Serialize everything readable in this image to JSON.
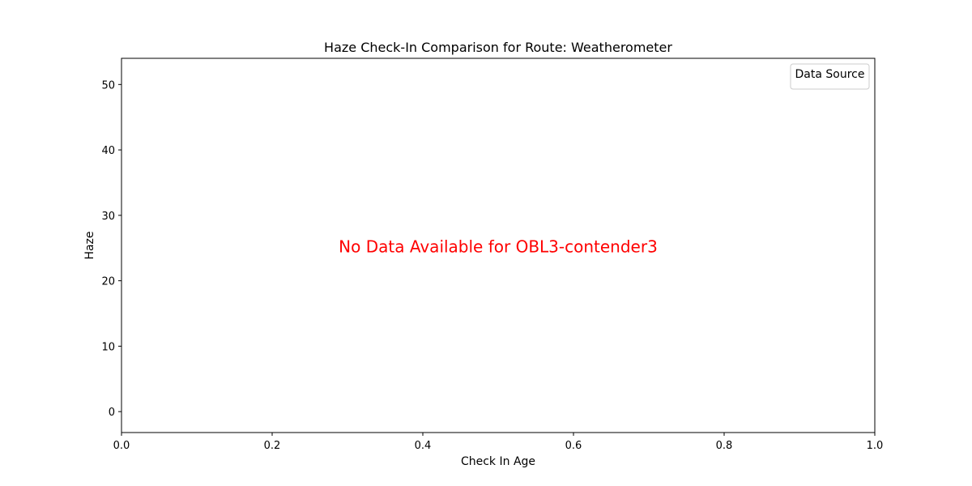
{
  "chart_data": {
    "type": "line",
    "title": "Haze Check-In Comparison for Route: Weatherometer",
    "xlabel": "Check In Age",
    "ylabel": "Haze",
    "xlim": [
      0.0,
      1.0
    ],
    "ylim": [
      -3.2,
      54.0
    ],
    "xticks": [
      0.0,
      0.2,
      0.4,
      0.6,
      0.8,
      1.0
    ],
    "xtick_labels": [
      "0.0",
      "0.2",
      "0.4",
      "0.6",
      "0.8",
      "1.0"
    ],
    "yticks": [
      0,
      10,
      20,
      30,
      40,
      50
    ],
    "ytick_labels": [
      "0",
      "10",
      "20",
      "30",
      "40",
      "50"
    ],
    "grid": false,
    "legend": {
      "title": "Data Source",
      "placement": "top-right",
      "entries": []
    },
    "series": [],
    "annotation": {
      "text": "No Data Available for OBL3-contender3",
      "color": "#ff0000",
      "x": 0.5,
      "y": 25
    }
  }
}
